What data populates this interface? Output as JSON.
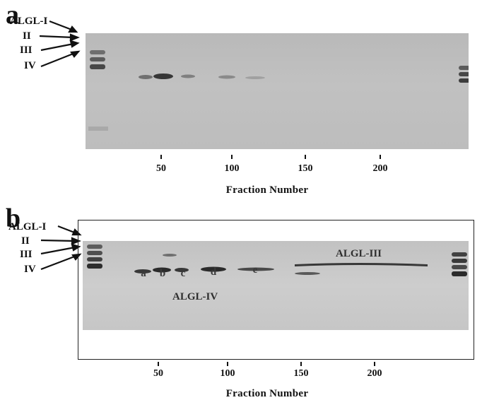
{
  "panel_a": {
    "letter": "a",
    "lane_labels": [
      "ALGL-I",
      "II",
      "III",
      "IV"
    ],
    "ticks": [
      "50",
      "100",
      "150",
      "200"
    ],
    "axis_title": "Fraction Number"
  },
  "panel_b": {
    "letter": "b",
    "lane_labels": [
      "ALGL-I",
      "II",
      "III",
      "IV"
    ],
    "ticks": [
      "50",
      "100",
      "150",
      "200"
    ],
    "axis_title": "Fraction Number",
    "band_letters": [
      "a",
      "b",
      "c",
      "d",
      "e"
    ],
    "group_label_iv": "ALGL-IV",
    "group_label_iii": "ALGL-III"
  }
}
